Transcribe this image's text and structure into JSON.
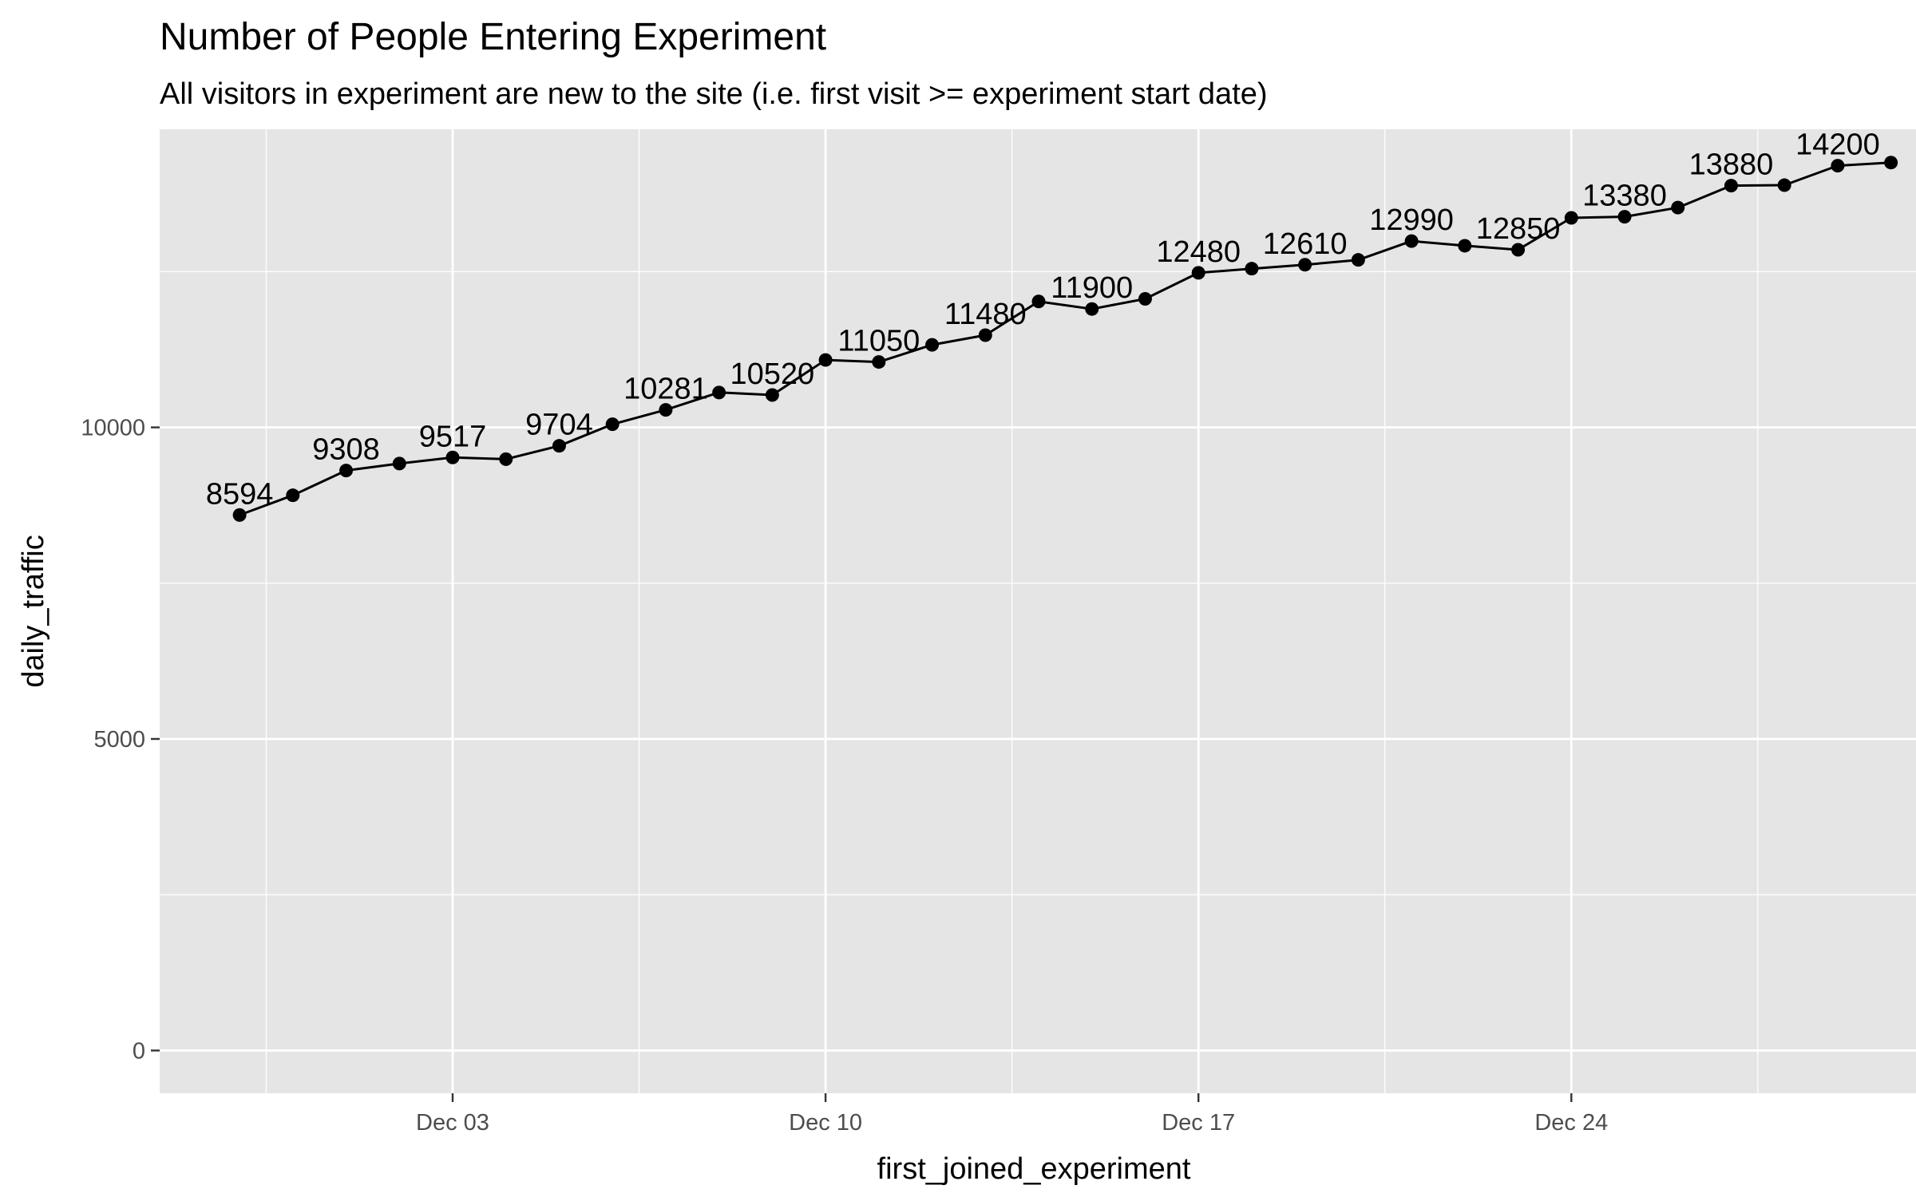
{
  "chart_data": {
    "type": "line",
    "title": "Number of People Entering Experiment",
    "subtitle": "All visitors in experiment are new to the site (i.e. first visit >= experiment start date)",
    "xlabel": "first_joined_experiment",
    "ylabel": "daily_traffic",
    "x_ticks": [
      {
        "date": "2018-12-03",
        "label": "Dec 03"
      },
      {
        "date": "2018-12-10",
        "label": "Dec 10"
      },
      {
        "date": "2018-12-17",
        "label": "Dec 17"
      },
      {
        "date": "2018-12-24",
        "label": "Dec 24"
      }
    ],
    "y_ticks": [
      0,
      5000,
      10000
    ],
    "ylim": [
      0,
      14000
    ],
    "xlim": [
      "2018-11-28",
      "2018-12-30"
    ],
    "grid": true,
    "label_every": 2,
    "x": [
      "2018-11-29",
      "2018-11-30",
      "2018-12-01",
      "2018-12-02",
      "2018-12-03",
      "2018-12-04",
      "2018-12-05",
      "2018-12-06",
      "2018-12-07",
      "2018-12-08",
      "2018-12-09",
      "2018-12-10",
      "2018-12-11",
      "2018-12-12",
      "2018-12-13",
      "2018-12-14",
      "2018-12-15",
      "2018-12-16",
      "2018-12-17",
      "2018-12-18",
      "2018-12-19",
      "2018-12-20",
      "2018-12-21",
      "2018-12-22",
      "2018-12-23",
      "2018-12-24",
      "2018-12-25",
      "2018-12-26",
      "2018-12-27",
      "2018-12-28",
      "2018-12-29",
      "2018-12-30"
    ],
    "values": [
      8594,
      8910,
      9308,
      9420,
      9517,
      9490,
      9704,
      10050,
      10281,
      10560,
      10520,
      11082,
      11050,
      11325,
      11480,
      12021,
      11900,
      12063,
      12480,
      12547,
      12610,
      12688,
      12990,
      12915,
      12850,
      13363,
      13380,
      13527,
      13880,
      13887,
      14200,
      14250
    ],
    "color": "#000000",
    "panel_color": "#e5e5e5",
    "grid_color": "#ffffff"
  }
}
